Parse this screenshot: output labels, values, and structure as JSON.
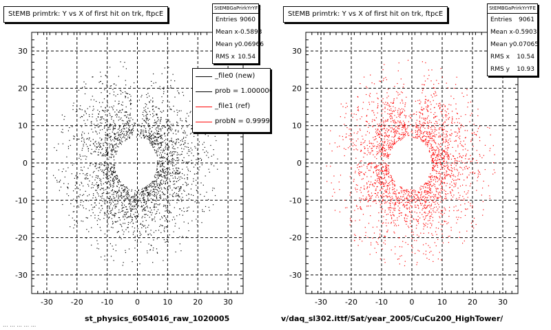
{
  "chart_data": [
    {
      "type": "scatter",
      "title": "StEMB primtrk: Y vs X of first hit on trk, ftpcE",
      "xlim": [
        -35,
        35
      ],
      "ylim": [
        -35,
        35
      ],
      "x_ticks": [
        -30,
        -20,
        -10,
        0,
        10,
        20,
        30
      ],
      "y_ticks": [
        -30,
        -20,
        -10,
        0,
        10,
        20,
        30
      ],
      "grid": true,
      "series_color": "#000000",
      "stats": {
        "header": "StEMBGaPrirkYrYFE",
        "rows": [
          {
            "label": "Entries",
            "value": "9060"
          },
          {
            "label": "Mean x",
            "value": "-0.5893"
          },
          {
            "label": "Mean y",
            "value": "0.06966"
          },
          {
            "label": "RMS x",
            "value": "10.54"
          }
        ]
      },
      "legend": {
        "placement": "top-right",
        "entries": [
          {
            "label": "_file0 (new)",
            "color": "#000000"
          },
          {
            "label": "prob = 1.000000",
            "color": "#000000"
          },
          {
            "label": "_file1 (ref)",
            "color": "#ff0000"
          },
          {
            "label": "probN = 0.999985",
            "color": "#ff0000"
          }
        ]
      },
      "bottom_label": "st_physics_6054016_raw_1020005"
    },
    {
      "type": "scatter",
      "title": "StEMB primtrk: Y vs X of first hit on trk, ftpcE",
      "xlim": [
        -35,
        35
      ],
      "ylim": [
        -35,
        35
      ],
      "x_ticks": [
        -30,
        -20,
        -10,
        0,
        10,
        20,
        30
      ],
      "y_ticks": [
        -30,
        -20,
        -10,
        0,
        10,
        20,
        30
      ],
      "grid": true,
      "series_color": "#ff0000",
      "stats": {
        "header": "StEMBGaPrirkYrYFE",
        "rows": [
          {
            "label": "Entries",
            "value": "9061"
          },
          {
            "label": "Mean x",
            "value": "-0.5903"
          },
          {
            "label": "Mean y",
            "value": "0.07065"
          },
          {
            "label": "RMS x",
            "value": "10.54"
          },
          {
            "label": "RMS y",
            "value": "10.93"
          }
        ]
      },
      "bottom_label": "v/daq_sl302.ittf/Sat/year_2005/CuCu200_HighTower/"
    }
  ],
  "footer_text": "... ... ... ... ..."
}
